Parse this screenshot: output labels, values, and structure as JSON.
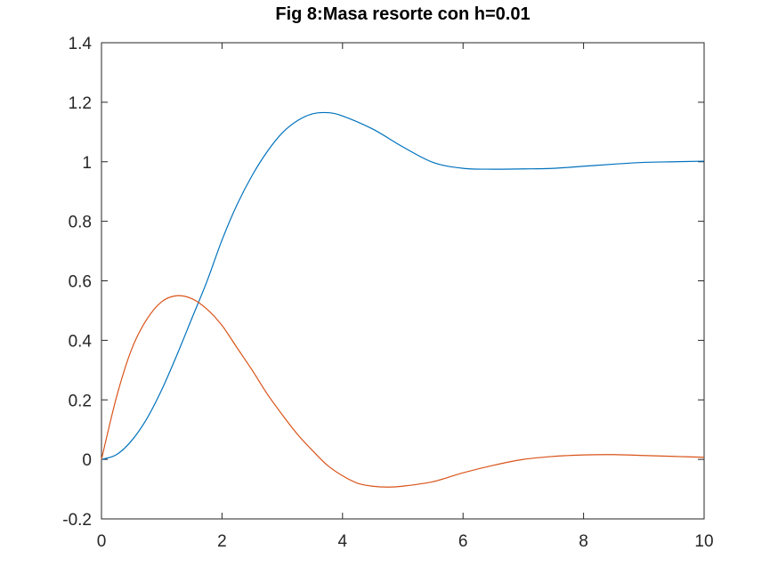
{
  "chart_data": {
    "type": "line",
    "title": "Fig 8:Masa resorte con h=0.01",
    "xlabel": "",
    "ylabel": "",
    "xlim": [
      0,
      10
    ],
    "ylim": [
      -0.2,
      1.4
    ],
    "xticks": [
      0,
      2,
      4,
      6,
      8,
      10
    ],
    "xtick_labels": [
      "0",
      "2",
      "4",
      "6",
      "8",
      "10"
    ],
    "yticks": [
      -0.2,
      0,
      0.2,
      0.4,
      0.6,
      0.8,
      1,
      1.2,
      1.4
    ],
    "ytick_labels": [
      "-0.2",
      "0",
      "0.2",
      "0.4",
      "0.6",
      "0.8",
      "1",
      "1.2",
      "1.4"
    ],
    "grid": false,
    "series": [
      {
        "color": "#0072bd",
        "x": [
          0,
          0.25,
          0.5,
          0.75,
          1.0,
          1.25,
          1.5,
          1.75,
          2.0,
          2.25,
          2.5,
          2.75,
          3.0,
          3.25,
          3.5,
          3.75,
          4.0,
          4.5,
          5.0,
          5.5,
          6.0,
          6.5,
          7.0,
          7.5,
          8.0,
          8.5,
          9.0,
          9.5,
          10.0
        ],
        "y": [
          0,
          0.016,
          0.063,
          0.136,
          0.234,
          0.35,
          0.474,
          0.598,
          0.737,
          0.856,
          0.954,
          1.034,
          1.097,
          1.138,
          1.161,
          1.165,
          1.154,
          1.11,
          1.05,
          0.998,
          0.978,
          0.975,
          0.976,
          0.978,
          0.985,
          0.992,
          0.998,
          1.0,
          1.002
        ]
      },
      {
        "color": "#d95319",
        "x": [
          0,
          0.25,
          0.5,
          0.75,
          1.0,
          1.25,
          1.5,
          1.75,
          2.0,
          2.25,
          2.5,
          2.75,
          3.0,
          3.25,
          3.5,
          3.75,
          4.0,
          4.25,
          4.5,
          4.75,
          5.0,
          5.5,
          6.0,
          6.5,
          7.0,
          7.5,
          8.0,
          8.5,
          9.0,
          9.5,
          10.0
        ],
        "y": [
          0,
          0.21,
          0.37,
          0.47,
          0.53,
          0.55,
          0.54,
          0.505,
          0.45,
          0.375,
          0.3,
          0.22,
          0.15,
          0.085,
          0.03,
          -0.02,
          -0.055,
          -0.08,
          -0.09,
          -0.093,
          -0.09,
          -0.075,
          -0.045,
          -0.02,
          0.0,
          0.01,
          0.015,
          0.016,
          0.013,
          0.01,
          0.007
        ]
      }
    ]
  }
}
